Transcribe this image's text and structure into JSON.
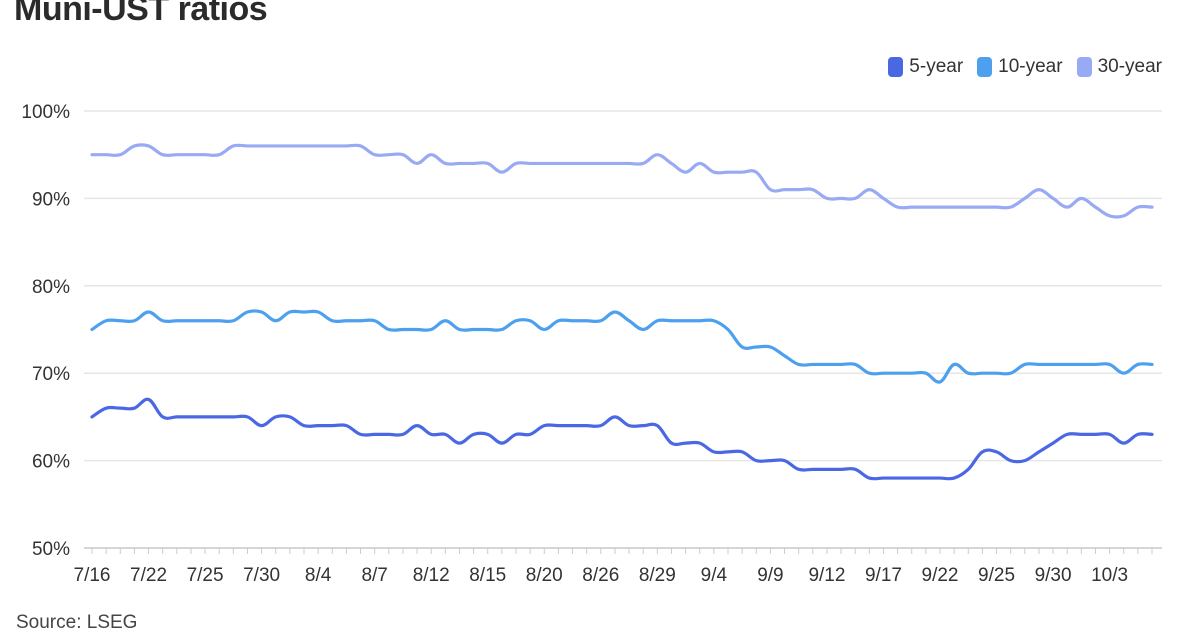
{
  "title": "Muni-UST ratios",
  "source": "Source: LSEG",
  "chart_data": {
    "type": "line",
    "title": "Muni-UST ratios",
    "xlabel": "",
    "ylabel": "",
    "ylim": [
      50,
      100
    ],
    "yticks": [
      "50%",
      "60%",
      "70%",
      "80%",
      "90%",
      "100%"
    ],
    "ytick_values": [
      50,
      60,
      70,
      80,
      90,
      100
    ],
    "grid": true,
    "legend_position": "top-right",
    "x_tick_labels": [
      "7/16",
      "7/22",
      "7/25",
      "7/30",
      "8/4",
      "8/7",
      "8/12",
      "8/15",
      "8/20",
      "8/26",
      "8/29",
      "9/4",
      "9/9",
      "9/12",
      "9/17",
      "9/22",
      "9/25",
      "9/30",
      "10/3"
    ],
    "x_tick_index": [
      0,
      4,
      8,
      12,
      16,
      20,
      24,
      28,
      32,
      36,
      40,
      44,
      48,
      52,
      56,
      60,
      64,
      68,
      72
    ],
    "series": [
      {
        "name": "5-year",
        "color": "#4a68e3",
        "values": [
          65,
          66,
          66,
          66,
          67,
          65,
          65,
          65,
          65,
          65,
          65,
          65,
          64,
          65,
          65,
          64,
          64,
          64,
          64,
          63,
          63,
          63,
          63,
          64,
          63,
          63,
          62,
          63,
          63,
          62,
          63,
          63,
          64,
          64,
          64,
          64,
          64,
          65,
          64,
          64,
          64,
          62,
          62,
          62,
          61,
          61,
          61,
          60,
          60,
          60,
          59,
          59,
          59,
          59,
          59,
          58,
          58,
          58,
          58,
          58,
          58,
          58,
          59,
          61,
          61,
          60,
          60,
          61,
          62,
          63,
          63,
          63,
          63,
          62,
          63,
          63
        ]
      },
      {
        "name": "10-year",
        "color": "#4da0ee",
        "values": [
          75,
          76,
          76,
          76,
          77,
          76,
          76,
          76,
          76,
          76,
          76,
          77,
          77,
          76,
          77,
          77,
          77,
          76,
          76,
          76,
          76,
          75,
          75,
          75,
          75,
          76,
          75,
          75,
          75,
          75,
          76,
          76,
          75,
          76,
          76,
          76,
          76,
          77,
          76,
          75,
          76,
          76,
          76,
          76,
          76,
          75,
          73,
          73,
          73,
          72,
          71,
          71,
          71,
          71,
          71,
          70,
          70,
          70,
          70,
          70,
          69,
          71,
          70,
          70,
          70,
          70,
          71,
          71,
          71,
          71,
          71,
          71,
          71,
          70,
          71,
          71
        ]
      },
      {
        "name": "30-year",
        "color": "#98aaf4",
        "values": [
          95,
          95,
          95,
          96,
          96,
          95,
          95,
          95,
          95,
          95,
          96,
          96,
          96,
          96,
          96,
          96,
          96,
          96,
          96,
          96,
          95,
          95,
          95,
          94,
          95,
          94,
          94,
          94,
          94,
          93,
          94,
          94,
          94,
          94,
          94,
          94,
          94,
          94,
          94,
          94,
          95,
          94,
          93,
          94,
          93,
          93,
          93,
          93,
          91,
          91,
          91,
          91,
          90,
          90,
          90,
          91,
          90,
          89,
          89,
          89,
          89,
          89,
          89,
          89,
          89,
          89,
          90,
          91,
          90,
          89,
          90,
          89,
          88,
          88,
          89,
          89
        ]
      }
    ]
  }
}
